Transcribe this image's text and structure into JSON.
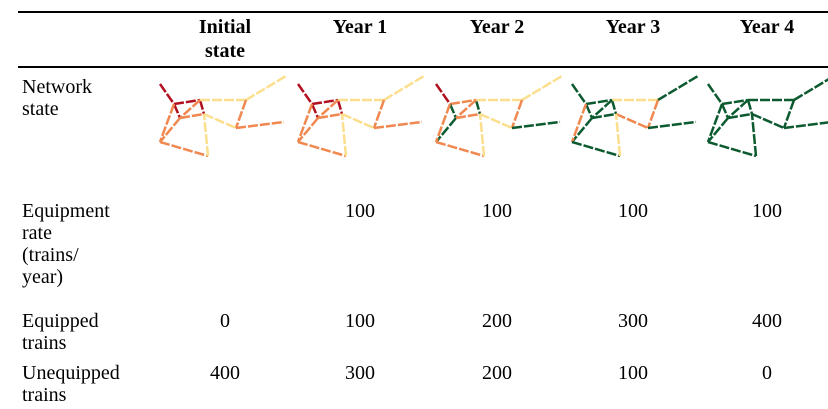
{
  "table": {
    "columns": [
      "Initial state",
      "Year 1",
      "Year 2",
      "Year 3",
      "Year 4"
    ],
    "rows": [
      {
        "label": "Network state"
      },
      {
        "label": "Equipment rate (trains/ year)",
        "values": [
          "",
          "100",
          "100",
          "100",
          "100"
        ]
      },
      {
        "label": "Equipped trains",
        "values": [
          "0",
          "100",
          "200",
          "300",
          "400"
        ]
      },
      {
        "label": "Unequipped trains",
        "values": [
          "400",
          "300",
          "200",
          "100",
          "0"
        ]
      }
    ]
  },
  "network": {
    "colors": {
      "unequipped": "#b01020",
      "partial": "#f08850",
      "light": "#fcdf8e",
      "equipped": "#0c5a30"
    },
    "states": [
      [
        "unequipped",
        "unequipped",
        "unequipped",
        "unequipped",
        "partial",
        "partial",
        "light",
        "light",
        "partial",
        "partial",
        "light",
        "partial",
        "partial",
        "partial",
        "light"
      ],
      [
        "unequipped",
        "unequipped",
        "unequipped",
        "unequipped",
        "partial",
        "partial",
        "light",
        "light",
        "partial",
        "partial",
        "light",
        "partial",
        "partial",
        "partial",
        "light"
      ],
      [
        "unequipped",
        "partial",
        "equipped",
        "equipped",
        "equipped",
        "partial",
        "light",
        "light",
        "partial",
        "equipped",
        "light",
        "partial",
        "partial",
        "partial",
        "light"
      ],
      [
        "equipped",
        "equipped",
        "equipped",
        "equipped",
        "equipped",
        "partial",
        "light",
        "equipped",
        "partial",
        "equipped",
        "partial",
        "equipped",
        "equipped",
        "equipped",
        "light"
      ],
      [
        "equipped",
        "equipped",
        "equipped",
        "equipped",
        "equipped",
        "equipped",
        "equipped",
        "equipped",
        "equipped",
        "equipped",
        "equipped",
        "equipped",
        "equipped",
        "equipped",
        "equipped"
      ]
    ]
  }
}
